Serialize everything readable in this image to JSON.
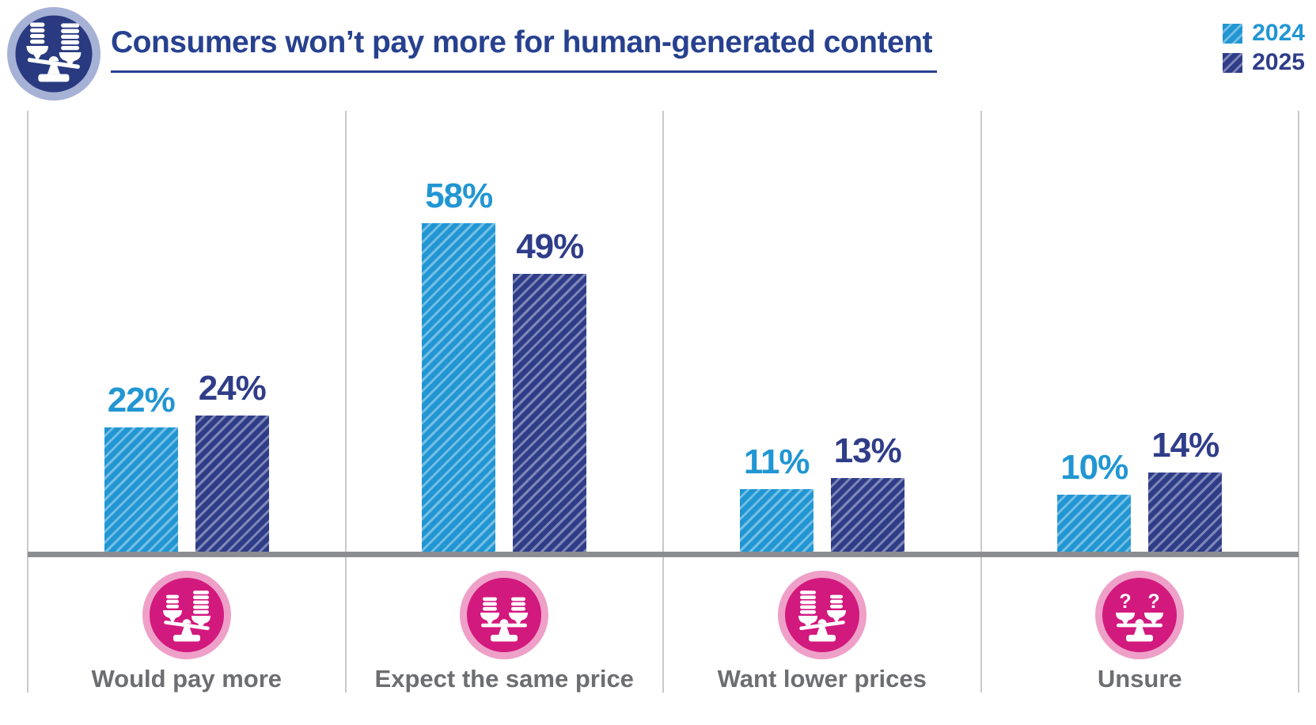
{
  "header": {
    "title": "Consumers won’t pay more for human-generated content",
    "logo_icon": "balance-scale-coins-icon"
  },
  "legend": {
    "position": "top-right",
    "items": [
      {
        "label": "2024",
        "color": "#2196D3"
      },
      {
        "label": "2025",
        "color": "#2F3D89"
      }
    ]
  },
  "chart_data": {
    "type": "bar",
    "title": "Consumers won’t pay more for human-generated content",
    "categories": [
      "Would pay more",
      "Expect the same price",
      "Want lower prices",
      "Unsure"
    ],
    "category_icons": [
      "scale-right-heavy-icon",
      "scale-balanced-icon",
      "scale-left-heavy-icon",
      "scale-question-icon"
    ],
    "series": [
      {
        "name": "2024",
        "color": "#2196D3",
        "values": [
          22,
          58,
          11,
          10
        ]
      },
      {
        "name": "2025",
        "color": "#2F3D89",
        "values": [
          24,
          49,
          13,
          14
        ]
      }
    ],
    "value_suffix": "%",
    "xlabel": "",
    "ylabel": "",
    "ylim": [
      0,
      78
    ],
    "grid": "vertical section dividers only",
    "legend_position": "top-right",
    "bar_pattern": "diagonal-hatch"
  },
  "colors": {
    "title": "#27418F",
    "series_2024": "#2196D3",
    "series_2025": "#2F3D89",
    "axis_bar": "#8B8D90",
    "gridline": "#C9CACC",
    "category_label": "#6D6E71",
    "icon_circle_magenta": "#D2197E",
    "icon_ring_pink": "#EFA0C8",
    "logo_circle_navy": "#293A80",
    "logo_ring_periwinkle": "#A6B1D6"
  }
}
